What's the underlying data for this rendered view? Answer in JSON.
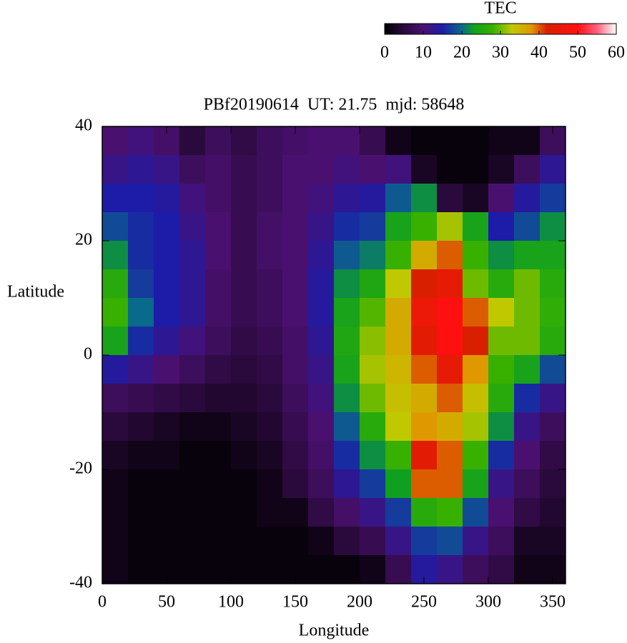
{
  "chart_data": {
    "type": "heatmap",
    "title": "PBf20190614  UT: 21.75  mjd: 58648",
    "xlabel": "Longitude",
    "ylabel": "Latitude",
    "colorbar_label": "TEC",
    "x": [
      10,
      30,
      50,
      70,
      90,
      110,
      130,
      150,
      170,
      190,
      210,
      230,
      250,
      270,
      290,
      310,
      330,
      350
    ],
    "y": [
      37.5,
      32.5,
      27.5,
      22.5,
      17.5,
      12.5,
      7.5,
      2.5,
      -2.5,
      -7.5,
      -12.5,
      -17.5,
      -22.5,
      -27.5,
      -32.5,
      -37.5
    ],
    "z": [
      [
        10,
        11,
        9,
        5,
        8,
        6,
        8,
        9,
        10,
        10,
        7,
        2,
        1,
        1,
        1,
        2,
        2,
        8
      ],
      [
        12,
        13,
        12,
        8,
        9,
        7,
        8,
        10,
        10,
        11,
        10,
        11,
        3,
        1,
        1,
        3,
        8,
        13
      ],
      [
        15,
        15,
        14,
        11,
        9,
        7,
        8,
        10,
        11,
        13,
        14,
        19,
        22,
        5,
        3,
        10,
        14,
        17
      ],
      [
        18,
        16,
        15,
        12,
        10,
        7,
        9,
        10,
        12,
        16,
        17,
        24,
        28,
        32,
        24,
        15,
        18,
        22
      ],
      [
        22,
        16,
        15,
        13,
        10,
        7,
        9,
        10,
        13,
        19,
        21,
        28,
        36,
        40,
        28,
        22,
        24,
        24
      ],
      [
        26,
        17,
        15,
        13,
        9,
        7,
        8,
        10,
        14,
        22,
        25,
        33,
        42,
        45,
        30,
        26,
        30,
        26
      ],
      [
        28,
        20,
        15,
        13,
        9,
        7,
        8,
        10,
        14,
        24,
        29,
        36,
        46,
        50,
        40,
        33,
        30,
        27
      ],
      [
        24,
        16,
        13,
        11,
        8,
        6,
        7,
        9,
        13,
        25,
        31,
        36,
        44,
        50,
        42,
        30,
        30,
        26
      ],
      [
        14,
        12,
        10,
        8,
        6,
        5,
        6,
        9,
        12,
        24,
        32,
        35,
        40,
        45,
        38,
        28,
        24,
        18
      ],
      [
        8,
        7,
        6,
        5,
        4,
        4,
        5,
        8,
        11,
        22,
        30,
        34,
        36,
        40,
        34,
        26,
        16,
        12
      ],
      [
        5,
        4,
        3,
        2,
        2,
        3,
        4,
        7,
        10,
        19,
        26,
        33,
        38,
        36,
        32,
        22,
        12,
        8
      ],
      [
        3,
        2,
        2,
        1,
        1,
        2,
        3,
        6,
        9,
        16,
        22,
        28,
        44,
        40,
        28,
        16,
        10,
        6
      ],
      [
        2,
        1,
        1,
        1,
        1,
        1,
        2,
        5,
        8,
        13,
        17,
        23,
        40,
        40,
        24,
        12,
        8,
        5
      ],
      [
        2,
        1,
        1,
        1,
        1,
        1,
        2,
        2,
        6,
        9,
        12,
        17,
        26,
        28,
        18,
        10,
        6,
        4
      ],
      [
        2,
        1,
        1,
        1,
        1,
        1,
        1,
        1,
        2,
        5,
        7,
        12,
        17,
        18,
        12,
        8,
        3,
        3
      ],
      [
        2,
        1,
        1,
        1,
        1,
        1,
        1,
        1,
        1,
        1,
        2,
        7,
        14,
        12,
        8,
        6,
        2,
        2
      ]
    ],
    "xlim": [
      0,
      360
    ],
    "ylim": [
      -40,
      40
    ],
    "xticks": [
      0,
      50,
      100,
      150,
      200,
      250,
      300,
      350
    ],
    "yticks": [
      -40,
      -20,
      0,
      20,
      40
    ],
    "clim": [
      0,
      60
    ],
    "cticks": [
      0,
      10,
      20,
      30,
      40,
      50,
      60
    ],
    "colorscale": [
      {
        "value": 0,
        "color": "#000000"
      },
      {
        "value": 5,
        "color": "#2a0a3c"
      },
      {
        "value": 10,
        "color": "#4a1070"
      },
      {
        "value": 15,
        "color": "#1c1ca8"
      },
      {
        "value": 20,
        "color": "#0a6a8a"
      },
      {
        "value": 23,
        "color": "#10a020"
      },
      {
        "value": 28,
        "color": "#38b000"
      },
      {
        "value": 33,
        "color": "#c0c800"
      },
      {
        "value": 38,
        "color": "#e09800"
      },
      {
        "value": 42,
        "color": "#d82000"
      },
      {
        "value": 50,
        "color": "#ff1010"
      },
      {
        "value": 55,
        "color": "#ff6080"
      },
      {
        "value": 60,
        "color": "#ffffff"
      }
    ]
  }
}
